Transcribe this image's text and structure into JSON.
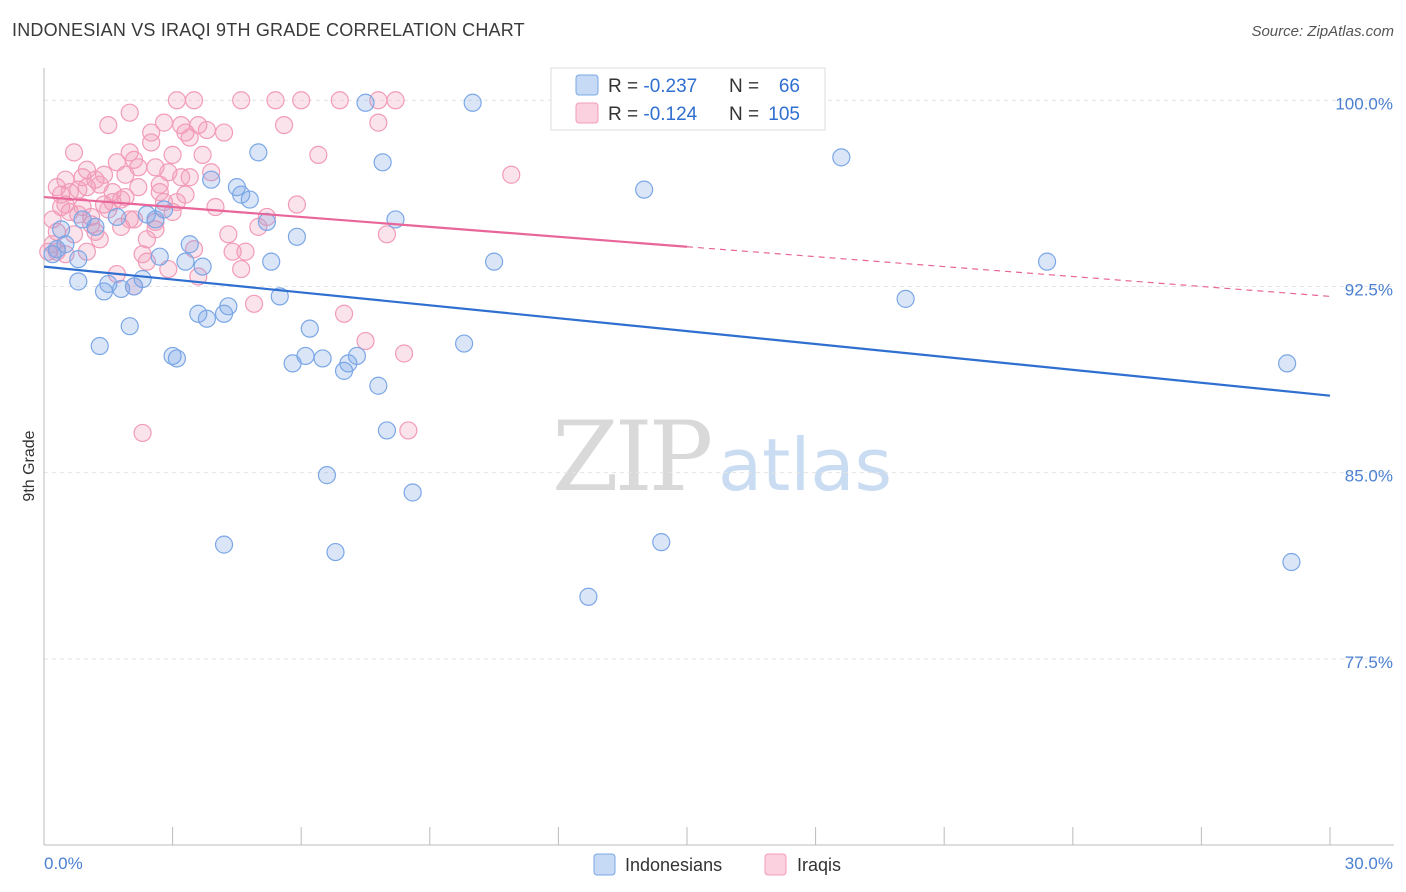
{
  "title": "INDONESIAN VS IRAQI 9TH GRADE CORRELATION CHART",
  "source": "Source: ZipAtlas.com",
  "watermark": {
    "zip": "ZIP",
    "atlas": "atlas"
  },
  "legend": {
    "rows": [
      {
        "r_label": "R = ",
        "r_value": "-0.237",
        "n_label": "N = ",
        "n_value": "66",
        "color": "#7ba7e6"
      },
      {
        "r_label": "R = ",
        "r_value": "-0.124",
        "n_label": "N = ",
        "n_value": "105",
        "color": "#f29bb8"
      }
    ]
  },
  "bottom_legend": [
    {
      "label": "Indonesians",
      "color": "#7ba7e6"
    },
    {
      "label": "Iraqis",
      "color": "#f29bb8"
    }
  ],
  "chart_data": {
    "type": "scatter",
    "title": "INDONESIAN VS IRAQI 9TH GRADE CORRELATION CHART",
    "xlabel": "",
    "ylabel": "9th Grade",
    "xlim": [
      0,
      30
    ],
    "ylim": [
      70,
      101.3
    ],
    "x_tick_labels": [
      {
        "value": 0,
        "label": "0.0%"
      },
      {
        "value": 30,
        "label": "30.0%"
      }
    ],
    "y_tick_labels": [
      {
        "value": 100,
        "label": "100.0%"
      },
      {
        "value": 92.5,
        "label": "92.5%"
      },
      {
        "value": 85,
        "label": "85.0%"
      },
      {
        "value": 77.5,
        "label": "77.5%"
      }
    ],
    "grid": true,
    "series": [
      {
        "name": "Indonesians",
        "color": "#7ba7e6",
        "trend": {
          "x": [
            0,
            30
          ],
          "y": [
            93.3,
            88.1
          ],
          "solid_to": 30
        },
        "points": [
          [
            0.2,
            93.8
          ],
          [
            0.4,
            94.8
          ],
          [
            0.5,
            94.2
          ],
          [
            0.8,
            92.7
          ],
          [
            0.8,
            93.6
          ],
          [
            0.9,
            95.2
          ],
          [
            1.3,
            90.1
          ],
          [
            1.4,
            92.3
          ],
          [
            1.5,
            92.6
          ],
          [
            1.7,
            95.3
          ],
          [
            1.8,
            92.4
          ],
          [
            2.0,
            90.9
          ],
          [
            2.1,
            92.5
          ],
          [
            2.3,
            92.8
          ],
          [
            2.4,
            95.4
          ],
          [
            2.6,
            95.2
          ],
          [
            2.7,
            93.7
          ],
          [
            2.8,
            95.6
          ],
          [
            3.0,
            89.7
          ],
          [
            3.1,
            89.6
          ],
          [
            3.3,
            93.5
          ],
          [
            3.4,
            94.2
          ],
          [
            3.6,
            91.4
          ],
          [
            3.7,
            93.3
          ],
          [
            3.8,
            91.2
          ],
          [
            3.9,
            96.8
          ],
          [
            4.2,
            91.4
          ],
          [
            4.3,
            91.7
          ],
          [
            4.5,
            96.5
          ],
          [
            4.6,
            96.2
          ],
          [
            4.8,
            96.0
          ],
          [
            5.0,
            97.9
          ],
          [
            5.2,
            95.1
          ],
          [
            5.3,
            93.5
          ],
          [
            5.5,
            92.1
          ],
          [
            5.8,
            89.4
          ],
          [
            5.9,
            94.5
          ],
          [
            6.1,
            89.7
          ],
          [
            6.2,
            90.8
          ],
          [
            6.5,
            89.6
          ],
          [
            6.6,
            84.9
          ],
          [
            6.8,
            81.8
          ],
          [
            7.0,
            89.1
          ],
          [
            7.1,
            89.4
          ],
          [
            7.3,
            89.7
          ],
          [
            7.5,
            99.9
          ],
          [
            7.8,
            88.5
          ],
          [
            7.9,
            97.5
          ],
          [
            8.0,
            86.7
          ],
          [
            8.2,
            95.2
          ],
          [
            8.6,
            84.2
          ],
          [
            9.8,
            90.2
          ],
          [
            10.0,
            99.9
          ],
          [
            10.5,
            93.5
          ],
          [
            4.2,
            82.1
          ],
          [
            12.7,
            80.0
          ],
          [
            14.0,
            96.4
          ],
          [
            14.4,
            82.2
          ],
          [
            18.6,
            97.7
          ],
          [
            20.1,
            92.0
          ],
          [
            23.4,
            93.5
          ],
          [
            29.0,
            89.4
          ],
          [
            29.1,
            81.4
          ],
          [
            13.0,
            99.9
          ],
          [
            0.3,
            94.0
          ],
          [
            1.2,
            94.9
          ]
        ]
      },
      {
        "name": "Iraqis",
        "color": "#f29bb8",
        "trend": {
          "x": [
            0,
            30
          ],
          "y": [
            96.1,
            92.1
          ],
          "solid_to": 15
        },
        "points": [
          [
            0.1,
            93.9
          ],
          [
            0.2,
            95.2
          ],
          [
            0.3,
            96.5
          ],
          [
            0.3,
            94.7
          ],
          [
            0.4,
            96.2
          ],
          [
            0.5,
            96.8
          ],
          [
            0.5,
            95.8
          ],
          [
            0.6,
            95.5
          ],
          [
            0.7,
            97.9
          ],
          [
            0.7,
            94.6
          ],
          [
            0.8,
            96.4
          ],
          [
            0.9,
            95.7
          ],
          [
            1.0,
            97.2
          ],
          [
            1.0,
            93.9
          ],
          [
            1.1,
            95.0
          ],
          [
            1.2,
            96.8
          ],
          [
            1.2,
            94.7
          ],
          [
            1.3,
            96.6
          ],
          [
            1.4,
            97.0
          ],
          [
            1.4,
            95.8
          ],
          [
            1.5,
            99.0
          ],
          [
            1.6,
            95.9
          ],
          [
            1.7,
            97.5
          ],
          [
            1.7,
            93.0
          ],
          [
            1.8,
            94.9
          ],
          [
            1.9,
            96.1
          ],
          [
            2.0,
            99.5
          ],
          [
            2.0,
            97.9
          ],
          [
            2.1,
            97.6
          ],
          [
            2.1,
            95.2
          ],
          [
            2.2,
            96.5
          ],
          [
            2.3,
            93.8
          ],
          [
            2.4,
            93.5
          ],
          [
            2.5,
            98.7
          ],
          [
            2.5,
            98.3
          ],
          [
            2.6,
            97.3
          ],
          [
            2.7,
            96.6
          ],
          [
            2.7,
            96.3
          ],
          [
            2.8,
            99.1
          ],
          [
            2.8,
            95.9
          ],
          [
            2.9,
            93.2
          ],
          [
            3.0,
            97.8
          ],
          [
            3.0,
            95.5
          ],
          [
            3.1,
            100.0
          ],
          [
            3.2,
            99.0
          ],
          [
            3.2,
            96.9
          ],
          [
            3.3,
            98.7
          ],
          [
            3.4,
            96.9
          ],
          [
            3.5,
            100.0
          ],
          [
            3.5,
            94.0
          ],
          [
            3.6,
            99.0
          ],
          [
            3.6,
            92.9
          ],
          [
            3.7,
            97.8
          ],
          [
            3.8,
            98.8
          ],
          [
            3.9,
            97.1
          ],
          [
            4.0,
            95.7
          ],
          [
            4.2,
            98.7
          ],
          [
            4.3,
            94.6
          ],
          [
            4.4,
            93.9
          ],
          [
            4.6,
            100.0
          ],
          [
            4.6,
            93.2
          ],
          [
            4.7,
            93.9
          ],
          [
            4.9,
            91.8
          ],
          [
            5.0,
            94.9
          ],
          [
            5.2,
            95.3
          ],
          [
            5.4,
            100.0
          ],
          [
            5.6,
            99.0
          ],
          [
            5.9,
            95.8
          ],
          [
            6.0,
            100.0
          ],
          [
            6.4,
            97.8
          ],
          [
            6.9,
            100.0
          ],
          [
            7.0,
            91.4
          ],
          [
            7.5,
            90.3
          ],
          [
            7.8,
            100.0
          ],
          [
            7.8,
            99.1
          ],
          [
            8.0,
            94.6
          ],
          [
            8.2,
            100.0
          ],
          [
            8.4,
            89.8
          ],
          [
            8.5,
            86.7
          ],
          [
            10.9,
            97.0
          ],
          [
            2.3,
            86.6
          ],
          [
            0.2,
            94.2
          ],
          [
            0.4,
            95.7
          ],
          [
            0.6,
            96.3
          ],
          [
            0.9,
            96.9
          ],
          [
            1.1,
            95.3
          ],
          [
            1.3,
            94.4
          ],
          [
            1.6,
            96.3
          ],
          [
            1.8,
            96.0
          ],
          [
            2.0,
            95.2
          ],
          [
            2.2,
            97.3
          ],
          [
            2.4,
            94.4
          ],
          [
            2.6,
            95.1
          ],
          [
            2.9,
            97.1
          ],
          [
            3.1,
            95.9
          ],
          [
            3.3,
            96.2
          ],
          [
            0.3,
            93.9
          ],
          [
            0.5,
            93.8
          ],
          [
            0.8,
            95.4
          ],
          [
            1.0,
            96.5
          ],
          [
            1.5,
            95.6
          ],
          [
            1.9,
            97.0
          ],
          [
            2.1,
            92.5
          ],
          [
            2.6,
            94.8
          ],
          [
            3.4,
            98.5
          ]
        ]
      }
    ]
  }
}
